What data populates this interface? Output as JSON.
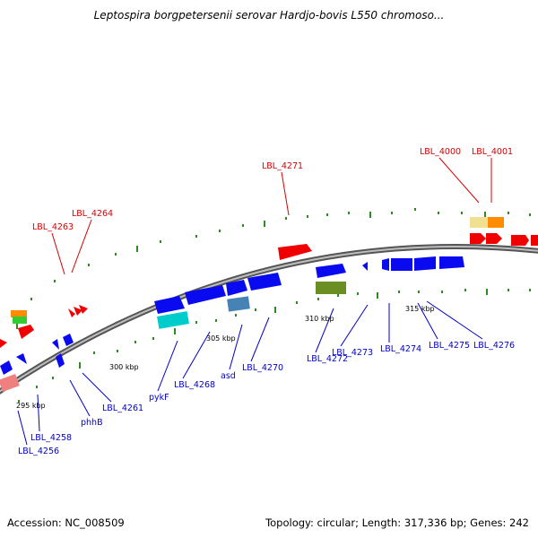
{
  "title": "Leptospira borgpetersenii serovar Hardjo-bovis L550 chromoso...",
  "footer": {
    "accession": "Accession: NC_008509",
    "summary": "Topology: circular; Length: 317,336 bp; Genes: 242"
  },
  "colors": {
    "backbone": "#8c8c8c",
    "tick": "#2e8b22",
    "label_red": "#d40000",
    "label_blue": "#0000c8",
    "gene_blue": "#0a0af0",
    "gene_red": "#f00000"
  },
  "scale_labels": [
    "295 kbp",
    "300 kbp",
    "305 kbp",
    "310 kbp",
    "315 kbp"
  ],
  "labels_outer": [
    "LBL_4263",
    "LBL_4264",
    "LBL_4271",
    "LBL_4000",
    "LBL_4001"
  ],
  "labels_inner": [
    "LBL_4256",
    "LBL_4258",
    "phhB",
    "LBL_4261",
    "pykF",
    "LBL_4268",
    "asd",
    "LBL_4270",
    "LBL_4272",
    "LBL_4273",
    "LBL_4274",
    "LBL_4275",
    "LBL_4276"
  ]
}
